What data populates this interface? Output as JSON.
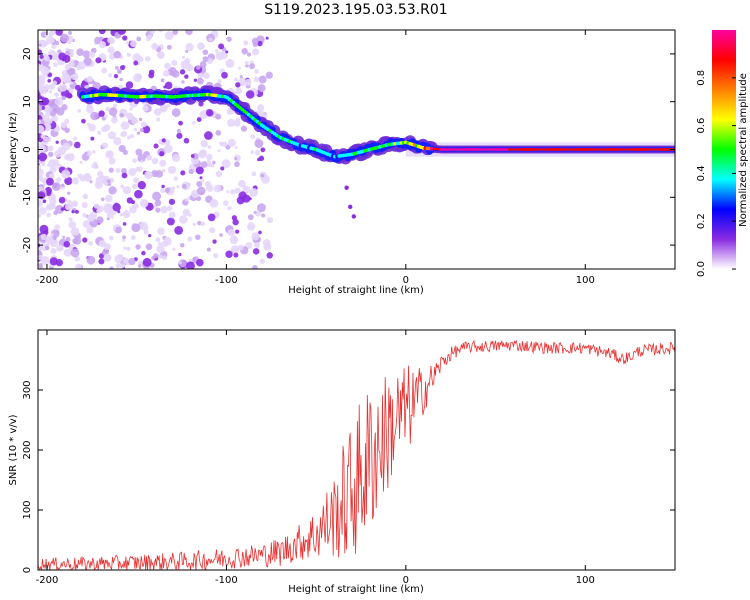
{
  "figure": {
    "title": "S119.2023.195.03.53.R01"
  },
  "chart_data": [
    {
      "type": "heatmap",
      "xlabel": "Height of straight line (km)",
      "ylabel": "Frequency (Hz)",
      "xlim": [
        -205,
        150
      ],
      "ylim": [
        -25,
        25
      ],
      "xticks": [
        -200,
        -100,
        0,
        100
      ],
      "yticks": [
        -20,
        -10,
        0,
        10,
        20
      ],
      "colorbar": {
        "label": "Normalized spectral amplitude",
        "range": [
          0,
          1
        ],
        "ticks": [
          0.0,
          0.2,
          0.4,
          0.6,
          0.8
        ],
        "colormap": [
          "#ffffff",
          "#8a2be2",
          "#0000ff",
          "#00ffff",
          "#00ff00",
          "#ffff00",
          "#ff8000",
          "#ff0000",
          "#ff00a0"
        ]
      },
      "ridge": {
        "x": [
          -180,
          -170,
          -160,
          -150,
          -140,
          -130,
          -120,
          -110,
          -100,
          -90,
          -80,
          -70,
          -60,
          -50,
          -40,
          -30,
          -20,
          -10,
          0,
          10,
          20,
          50,
          80,
          100,
          120,
          150
        ],
        "y": [
          11,
          11.5,
          11.3,
          11,
          11.2,
          11,
          11.3,
          11.5,
          11,
          8,
          5,
          2.5,
          1,
          0,
          -1.5,
          -1,
          0,
          1,
          1.5,
          0.3,
          0,
          0,
          0,
          0,
          0,
          0
        ],
        "amplitude": [
          0.5,
          0.6,
          0.55,
          0.55,
          0.5,
          0.5,
          0.5,
          0.55,
          0.5,
          0.45,
          0.45,
          0.45,
          0.4,
          0.4,
          0.35,
          0.4,
          0.5,
          0.5,
          0.55,
          0.8,
          0.95,
          0.95,
          0.9,
          0.9,
          0.85,
          0.9
        ]
      }
    },
    {
      "type": "line",
      "xlabel": "Height of straight line (km)",
      "ylabel": "SNR (10 * v/v)",
      "xlim": [
        -205,
        150
      ],
      "ylim": [
        0,
        400
      ],
      "xticks": [
        -200,
        -100,
        0,
        100
      ],
      "yticks": [
        0,
        100,
        200,
        300
      ],
      "color": "#e83030",
      "series": [
        {
          "x": [
            -205,
            -180,
            -150,
            -120,
            -100,
            -80,
            -70,
            -60,
            -50,
            -40,
            -35,
            -30,
            -25,
            -20,
            -15,
            -10,
            -5,
            0,
            5,
            10,
            15,
            20,
            25,
            30,
            35,
            40,
            60,
            80,
            100,
            115,
            120,
            125,
            130,
            140,
            150
          ],
          "y": [
            10,
            10,
            12,
            15,
            20,
            25,
            30,
            45,
            60,
            90,
            110,
            130,
            160,
            185,
            210,
            230,
            250,
            265,
            280,
            300,
            320,
            345,
            360,
            368,
            372,
            372,
            375,
            370,
            370,
            360,
            352,
            355,
            365,
            368,
            370
          ],
          "noise": [
            10,
            12,
            14,
            16,
            18,
            20,
            25,
            30,
            45,
            70,
            100,
            120,
            130,
            130,
            120,
            100,
            90,
            80,
            60,
            40,
            25,
            15,
            12,
            10,
            10,
            10,
            10,
            10,
            10,
            10,
            10,
            10,
            10,
            10,
            10
          ]
        }
      ]
    }
  ]
}
